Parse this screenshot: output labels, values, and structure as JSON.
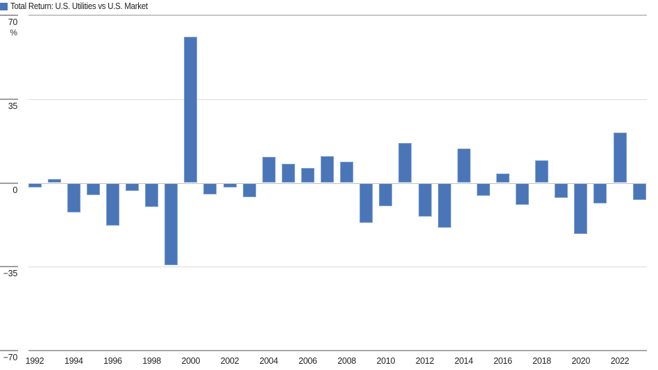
{
  "legend": {
    "label": "Total Return: U.S. Utilities vs U.S. Market",
    "color": "#4a76b8"
  },
  "y_axis": {
    "unit": "%",
    "ticks": [
      "70",
      "35",
      "0",
      "−35",
      "−70"
    ]
  },
  "x_axis": {
    "ticks": [
      "1992",
      "1994",
      "1996",
      "1998",
      "2000",
      "2002",
      "2004",
      "2006",
      "2008",
      "2010",
      "2012",
      "2014",
      "2016",
      "2018",
      "2020",
      "2022"
    ]
  },
  "chart_data": {
    "type": "bar",
    "title": "Total Return: U.S. Utilities vs U.S. Market",
    "xlabel": "",
    "ylabel": "%",
    "ylim": [
      -70,
      70
    ],
    "yticks": [
      70,
      35,
      0,
      -35,
      -70
    ],
    "grid": true,
    "legend_position": "top-left",
    "categories": [
      "1992",
      "1993",
      "1994",
      "1995",
      "1996",
      "1997",
      "1998",
      "1999",
      "2000",
      "2001",
      "2002",
      "2003",
      "2004",
      "2005",
      "2006",
      "2007",
      "2008",
      "2009",
      "2010",
      "2011",
      "2012",
      "2013",
      "2014",
      "2015",
      "2016",
      "2017",
      "2018",
      "2019",
      "2020",
      "2021",
      "2022",
      "2023"
    ],
    "series": [
      {
        "name": "Total Return: U.S. Utilities vs U.S. Market",
        "color": "#4a76b8",
        "values": [
          -1.8,
          1.6,
          -12.3,
          -5.0,
          -17.9,
          -3.3,
          -10.0,
          -34.4,
          60.9,
          -4.8,
          -1.8,
          -6.0,
          10.8,
          8.1,
          6.1,
          11.2,
          8.8,
          -16.8,
          -9.6,
          16.8,
          -14.2,
          -18.6,
          14.3,
          -5.3,
          4.0,
          -9.0,
          9.5,
          -6.2,
          -21.4,
          -8.6,
          21.0,
          -7.1
        ]
      }
    ]
  }
}
